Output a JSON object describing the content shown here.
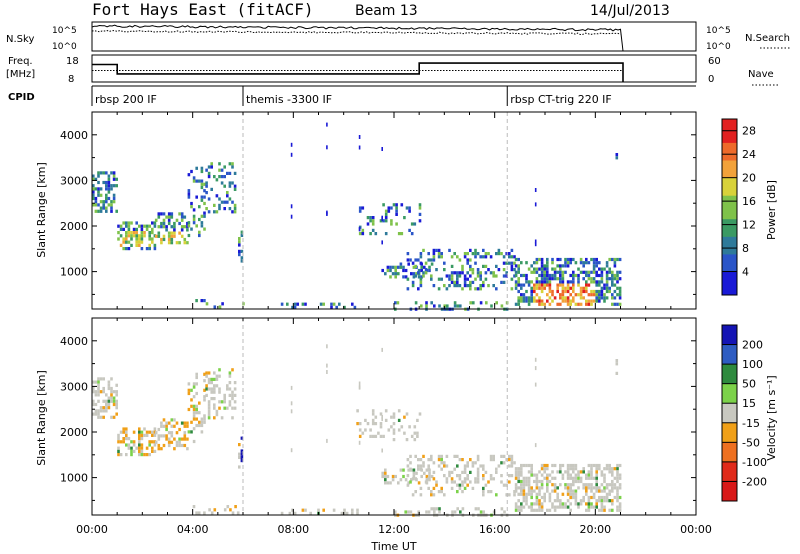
{
  "header": {
    "station": "Fort Hays East (fitACF)",
    "beam": "Beam 13",
    "date": "14/Jul/2013"
  },
  "strips": {
    "nsky_label": "N.Sky",
    "nsky_ticks": [
      "10^5",
      "10^0"
    ],
    "nsearch_label": "N.Search",
    "nsearch_ticks": [
      "10^5",
      "10^0"
    ],
    "freq_label": "Freq.",
    "freq_unit": "[MHz]",
    "freq_ticks": [
      "18",
      "8"
    ],
    "nave_label": "Nave",
    "nave_ticks": [
      "60",
      "0"
    ],
    "cpid_label": "CPID"
  },
  "cpid_segments": [
    {
      "label": "rbsp 200 IF",
      "start_h": 0.0
    },
    {
      "label": "themis -3300 IF",
      "start_h": 6.0
    },
    {
      "label": "rbsp CT-trig 220 IF",
      "start_h": 16.5
    }
  ],
  "chart_data": [
    {
      "type": "heatmap",
      "panel": "power",
      "xlabel": "Time UT",
      "ylabel": "Slant Range [km]",
      "xlim_hours": [
        0,
        24
      ],
      "ylim_km": [
        180,
        4500
      ],
      "x_ticks": [
        "00:00",
        "04:00",
        "08:00",
        "12:00",
        "16:00",
        "20:00",
        "00:00"
      ],
      "y_ticks": [
        1000,
        2000,
        3000,
        4000
      ],
      "colorbar": {
        "label": "Power [dB]",
        "range": [
          0,
          30
        ],
        "ticks": [
          "4",
          "8",
          "12",
          "16",
          "20",
          "24",
          "28"
        ]
      }
    },
    {
      "type": "heatmap",
      "panel": "velocity",
      "xlabel": "Time UT",
      "ylabel": "Slant Range [km]",
      "xlim_hours": [
        0,
        24
      ],
      "ylim_km": [
        180,
        4500
      ],
      "x_ticks": [
        "00:00",
        "04:00",
        "08:00",
        "12:00",
        "16:00",
        "20:00",
        "00:00"
      ],
      "y_ticks": [
        1000,
        2000,
        3000,
        4000
      ],
      "colorbar": {
        "label": "Velocity [m s⁻¹]",
        "ticks": [
          "200",
          "100",
          "50",
          "15",
          "-15",
          "-50",
          "-100",
          "-200"
        ]
      }
    }
  ]
}
